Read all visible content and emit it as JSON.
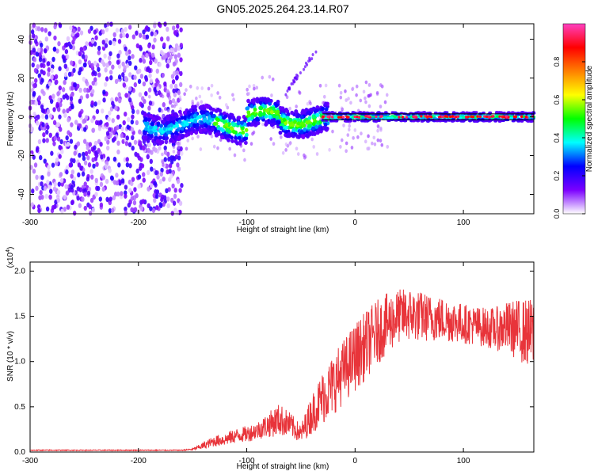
{
  "title": "GN05.2025.264.23.14.R07",
  "chart_data": [
    {
      "type": "heatmap",
      "title": "GN05.2025.264.23.14.R07",
      "xlabel": "Height of straight line (km)",
      "ylabel": "Frequency (Hz)",
      "xlim": [
        -300,
        165
      ],
      "ylim": [
        -50,
        48
      ],
      "x_ticks": [
        "-300",
        "-200",
        "-100",
        "0",
        "100"
      ],
      "y_ticks": [
        "-40",
        "-20",
        "0",
        "20",
        "40"
      ],
      "colorbar": {
        "label": "Normalized spectral amplitude",
        "range": [
          0,
          1
        ],
        "ticks": [
          "0.0",
          "0.2",
          "0.4",
          "0.6",
          "0.8"
        ],
        "colors": [
          "#ffffff",
          "#7b00ff",
          "#0000ff",
          "#00ffff",
          "#00ff00",
          "#ffff00",
          "#ff8000",
          "#ff0000",
          "#ff40c0"
        ]
      },
      "regions": [
        {
          "x": [
            -300,
            -160
          ],
          "freq": [
            -50,
            48
          ],
          "amplitude": "low, broadband noise"
        },
        {
          "x": [
            -160,
            -30
          ],
          "freq": [
            -12,
            8
          ],
          "amplitude": "medium, wandering band near 0 Hz"
        },
        {
          "x": [
            -30,
            165
          ],
          "freq": [
            -2,
            2
          ],
          "amplitude": "high, steady line at 0 Hz"
        }
      ]
    },
    {
      "type": "line",
      "xlabel": "Height of straight line (km)",
      "ylabel": "SNR (10 * v/v)",
      "y_scale_note": "(x10",
      "y_scale_exp": "4",
      "xlim": [
        -300,
        165
      ],
      "ylim": [
        0,
        2.1
      ],
      "x_ticks": [
        "-300",
        "-200",
        "-100",
        "0",
        "100"
      ],
      "y_ticks": [
        "0.0",
        "0.5",
        "1.0",
        "1.5",
        "2.0"
      ],
      "series": [
        {
          "name": "SNR",
          "color": "#e8343a",
          "x": [
            -300,
            -250,
            -200,
            -160,
            -150,
            -140,
            -130,
            -120,
            -110,
            -100,
            -90,
            -80,
            -70,
            -60,
            -50,
            -40,
            -30,
            -20,
            -10,
            0,
            10,
            20,
            30,
            40,
            50,
            60,
            70,
            80,
            90,
            100,
            110,
            120,
            130,
            140,
            150,
            165
          ],
          "values": [
            0.02,
            0.02,
            0.02,
            0.02,
            0.03,
            0.07,
            0.12,
            0.14,
            0.18,
            0.2,
            0.24,
            0.3,
            0.36,
            0.3,
            0.2,
            0.42,
            0.6,
            0.75,
            0.9,
            1.05,
            1.18,
            1.32,
            1.42,
            1.5,
            1.52,
            1.5,
            1.48,
            1.47,
            1.45,
            1.42,
            1.4,
            1.38,
            1.36,
            1.38,
            1.35,
            1.3
          ],
          "noise_amplitude": [
            0.005,
            0.005,
            0.005,
            0.005,
            0.01,
            0.04,
            0.06,
            0.07,
            0.08,
            0.09,
            0.1,
            0.14,
            0.18,
            0.14,
            0.1,
            0.22,
            0.3,
            0.34,
            0.36,
            0.38,
            0.38,
            0.36,
            0.34,
            0.3,
            0.3,
            0.28,
            0.26,
            0.25,
            0.24,
            0.22,
            0.22,
            0.22,
            0.24,
            0.28,
            0.34,
            0.4
          ]
        }
      ]
    }
  ]
}
